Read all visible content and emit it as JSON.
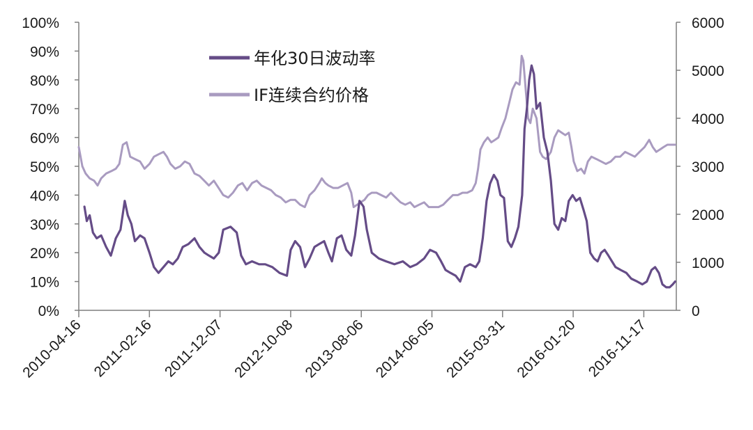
{
  "chart_data": {
    "type": "line",
    "title": "",
    "left_axis": {
      "min": 0,
      "max": 100,
      "ticks": [
        "0%",
        "10%",
        "20%",
        "30%",
        "40%",
        "50%",
        "60%",
        "70%",
        "80%",
        "90%",
        "100%"
      ]
    },
    "right_axis": {
      "min": 0,
      "max": 6000,
      "ticks": [
        "0",
        "1000",
        "2000",
        "3000",
        "4000",
        "5000",
        "6000"
      ]
    },
    "x_tick_labels": [
      "2010-04-16",
      "2011-02-16",
      "2011-12-07",
      "2012-10-08",
      "2013-08-06",
      "2014-06-05",
      "2015-03-31",
      "2016-01-20",
      "2016-11-17"
    ],
    "legend_position": "top-center",
    "grid": false,
    "series": [
      {
        "name": "年化30日波动率",
        "axis": "left",
        "unit": "%",
        "color": "#654c87",
        "points": [
          [
            "2010-05-10",
            36
          ],
          [
            "2010-05-20",
            31
          ],
          [
            "2010-06-01",
            33
          ],
          [
            "2010-06-15",
            27
          ],
          [
            "2010-07-01",
            25
          ],
          [
            "2010-07-20",
            26
          ],
          [
            "2010-08-10",
            22
          ],
          [
            "2010-08-30",
            19
          ],
          [
            "2010-09-20",
            25
          ],
          [
            "2010-10-10",
            28
          ],
          [
            "2010-10-28",
            38
          ],
          [
            "2010-11-10",
            33
          ],
          [
            "2010-11-25",
            30
          ],
          [
            "2010-12-10",
            24
          ],
          [
            "2011-01-01",
            26
          ],
          [
            "2011-01-20",
            25
          ],
          [
            "2011-02-10",
            20
          ],
          [
            "2011-03-01",
            15
          ],
          [
            "2011-03-20",
            13
          ],
          [
            "2011-04-10",
            15
          ],
          [
            "2011-05-01",
            17
          ],
          [
            "2011-05-20",
            16
          ],
          [
            "2011-06-10",
            18
          ],
          [
            "2011-07-01",
            22
          ],
          [
            "2011-07-25",
            23
          ],
          [
            "2011-08-20",
            25
          ],
          [
            "2011-09-10",
            22
          ],
          [
            "2011-10-01",
            20
          ],
          [
            "2011-10-20",
            19
          ],
          [
            "2011-11-10",
            18
          ],
          [
            "2011-12-01",
            20
          ],
          [
            "2011-12-20",
            28
          ],
          [
            "2012-01-20",
            29
          ],
          [
            "2012-02-15",
            27
          ],
          [
            "2012-03-05",
            19
          ],
          [
            "2012-03-25",
            16
          ],
          [
            "2012-04-20",
            17
          ],
          [
            "2012-05-20",
            16
          ],
          [
            "2012-06-15",
            16
          ],
          [
            "2012-07-15",
            15
          ],
          [
            "2012-08-15",
            13
          ],
          [
            "2012-09-15",
            12
          ],
          [
            "2012-10-01",
            21
          ],
          [
            "2012-10-20",
            24
          ],
          [
            "2012-11-10",
            22
          ],
          [
            "2012-12-01",
            15
          ],
          [
            "2012-12-20",
            18
          ],
          [
            "2013-01-10",
            22
          ],
          [
            "2013-01-30",
            23
          ],
          [
            "2013-02-20",
            24
          ],
          [
            "2013-03-10",
            20
          ],
          [
            "2013-03-25",
            17
          ],
          [
            "2013-04-15",
            25
          ],
          [
            "2013-05-05",
            26
          ],
          [
            "2013-05-25",
            21
          ],
          [
            "2013-06-15",
            19
          ],
          [
            "2013-07-01",
            26
          ],
          [
            "2013-07-20",
            38
          ],
          [
            "2013-08-06",
            36
          ],
          [
            "2013-08-20",
            28
          ],
          [
            "2013-09-10",
            20
          ],
          [
            "2013-10-10",
            18
          ],
          [
            "2013-11-10",
            17
          ],
          [
            "2013-12-15",
            16
          ],
          [
            "2014-01-20",
            17
          ],
          [
            "2014-02-20",
            15
          ],
          [
            "2014-03-20",
            16
          ],
          [
            "2014-04-20",
            18
          ],
          [
            "2014-05-15",
            21
          ],
          [
            "2014-06-10",
            20
          ],
          [
            "2014-07-01",
            17
          ],
          [
            "2014-07-20",
            14
          ],
          [
            "2014-08-10",
            13
          ],
          [
            "2014-09-01",
            12
          ],
          [
            "2014-09-20",
            10
          ],
          [
            "2014-10-10",
            15
          ],
          [
            "2014-11-01",
            16
          ],
          [
            "2014-11-25",
            15
          ],
          [
            "2014-12-10",
            17
          ],
          [
            "2014-12-25",
            25
          ],
          [
            "2015-01-10",
            38
          ],
          [
            "2015-01-25",
            44
          ],
          [
            "2015-02-10",
            47
          ],
          [
            "2015-02-25",
            45
          ],
          [
            "2015-03-10",
            40
          ],
          [
            "2015-03-25",
            39
          ],
          [
            "2015-04-10",
            24
          ],
          [
            "2015-04-25",
            22
          ],
          [
            "2015-05-10",
            25
          ],
          [
            "2015-05-25",
            29
          ],
          [
            "2015-06-10",
            40
          ],
          [
            "2015-06-20",
            63
          ],
          [
            "2015-06-30",
            70
          ],
          [
            "2015-07-10",
            80
          ],
          [
            "2015-07-20",
            85
          ],
          [
            "2015-07-30",
            82
          ],
          [
            "2015-08-10",
            70
          ],
          [
            "2015-08-25",
            72
          ],
          [
            "2015-09-10",
            60
          ],
          [
            "2015-09-25",
            55
          ],
          [
            "2015-10-10",
            45
          ],
          [
            "2015-10-25",
            30
          ],
          [
            "2015-11-10",
            28
          ],
          [
            "2015-11-25",
            32
          ],
          [
            "2015-12-10",
            31
          ],
          [
            "2015-12-25",
            38
          ],
          [
            "2016-01-10",
            40
          ],
          [
            "2016-01-25",
            38
          ],
          [
            "2016-02-10",
            39
          ],
          [
            "2016-02-25",
            35
          ],
          [
            "2016-03-10",
            31
          ],
          [
            "2016-03-25",
            20
          ],
          [
            "2016-04-10",
            18
          ],
          [
            "2016-04-25",
            17
          ],
          [
            "2016-05-10",
            20
          ],
          [
            "2016-05-25",
            21
          ],
          [
            "2016-06-10",
            19
          ],
          [
            "2016-06-25",
            17
          ],
          [
            "2016-07-10",
            15
          ],
          [
            "2016-08-01",
            14
          ],
          [
            "2016-08-25",
            13
          ],
          [
            "2016-09-15",
            11
          ],
          [
            "2016-10-10",
            10
          ],
          [
            "2016-11-01",
            9
          ],
          [
            "2016-11-20",
            10
          ],
          [
            "2016-12-10",
            14
          ],
          [
            "2016-12-25",
            15
          ],
          [
            "2017-01-10",
            13
          ],
          [
            "2017-01-25",
            9
          ],
          [
            "2017-02-10",
            8
          ],
          [
            "2017-02-25",
            8
          ],
          [
            "2017-03-10",
            9
          ],
          [
            "2017-03-20",
            10
          ]
        ]
      },
      {
        "name": "IF连续合约价格",
        "axis": "right",
        "unit": "",
        "color": "#a99bc0",
        "points": [
          [
            "2010-04-16",
            3400
          ],
          [
            "2010-05-01",
            3000
          ],
          [
            "2010-05-15",
            2850
          ],
          [
            "2010-06-01",
            2750
          ],
          [
            "2010-06-20",
            2700
          ],
          [
            "2010-07-05",
            2600
          ],
          [
            "2010-07-20",
            2750
          ],
          [
            "2010-08-10",
            2850
          ],
          [
            "2010-09-01",
            2900
          ],
          [
            "2010-09-20",
            2950
          ],
          [
            "2010-10-05",
            3050
          ],
          [
            "2010-10-20",
            3450
          ],
          [
            "2010-11-05",
            3500
          ],
          [
            "2010-11-20",
            3200
          ],
          [
            "2010-12-10",
            3150
          ],
          [
            "2011-01-01",
            3100
          ],
          [
            "2011-01-20",
            2950
          ],
          [
            "2011-02-10",
            3050
          ],
          [
            "2011-03-01",
            3200
          ],
          [
            "2011-03-20",
            3250
          ],
          [
            "2011-04-10",
            3300
          ],
          [
            "2011-04-25",
            3200
          ],
          [
            "2011-05-10",
            3050
          ],
          [
            "2011-05-30",
            2950
          ],
          [
            "2011-06-20",
            3000
          ],
          [
            "2011-07-10",
            3100
          ],
          [
            "2011-07-30",
            3050
          ],
          [
            "2011-08-20",
            2850
          ],
          [
            "2011-09-10",
            2800
          ],
          [
            "2011-09-30",
            2700
          ],
          [
            "2011-10-20",
            2600
          ],
          [
            "2011-11-10",
            2700
          ],
          [
            "2011-11-30",
            2550
          ],
          [
            "2011-12-20",
            2400
          ],
          [
            "2012-01-10",
            2350
          ],
          [
            "2012-01-30",
            2450
          ],
          [
            "2012-02-20",
            2600
          ],
          [
            "2012-03-10",
            2650
          ],
          [
            "2012-03-30",
            2500
          ],
          [
            "2012-04-20",
            2650
          ],
          [
            "2012-05-10",
            2700
          ],
          [
            "2012-05-30",
            2600
          ],
          [
            "2012-06-20",
            2550
          ],
          [
            "2012-07-10",
            2500
          ],
          [
            "2012-07-30",
            2400
          ],
          [
            "2012-08-20",
            2350
          ],
          [
            "2012-09-10",
            2250
          ],
          [
            "2012-09-30",
            2300
          ],
          [
            "2012-10-20",
            2300
          ],
          [
            "2012-11-10",
            2200
          ],
          [
            "2012-11-30",
            2150
          ],
          [
            "2012-12-20",
            2400
          ],
          [
            "2013-01-10",
            2500
          ],
          [
            "2013-01-30",
            2650
          ],
          [
            "2013-02-10",
            2750
          ],
          [
            "2013-02-25",
            2650
          ],
          [
            "2013-03-10",
            2600
          ],
          [
            "2013-03-30",
            2550
          ],
          [
            "2013-04-20",
            2550
          ],
          [
            "2013-05-10",
            2600
          ],
          [
            "2013-05-30",
            2650
          ],
          [
            "2013-06-15",
            2450
          ],
          [
            "2013-06-25",
            2150
          ],
          [
            "2013-07-10",
            2200
          ],
          [
            "2013-07-25",
            2250
          ],
          [
            "2013-08-10",
            2300
          ],
          [
            "2013-08-25",
            2400
          ],
          [
            "2013-09-10",
            2450
          ],
          [
            "2013-09-30",
            2450
          ],
          [
            "2013-10-20",
            2400
          ],
          [
            "2013-11-10",
            2350
          ],
          [
            "2013-11-30",
            2450
          ],
          [
            "2013-12-20",
            2350
          ],
          [
            "2014-01-10",
            2250
          ],
          [
            "2014-01-30",
            2200
          ],
          [
            "2014-02-20",
            2250
          ],
          [
            "2014-03-10",
            2150
          ],
          [
            "2014-03-30",
            2200
          ],
          [
            "2014-04-20",
            2250
          ],
          [
            "2014-05-10",
            2150
          ],
          [
            "2014-05-30",
            2150
          ],
          [
            "2014-06-20",
            2150
          ],
          [
            "2014-07-10",
            2200
          ],
          [
            "2014-07-30",
            2300
          ],
          [
            "2014-08-20",
            2400
          ],
          [
            "2014-09-10",
            2400
          ],
          [
            "2014-09-30",
            2450
          ],
          [
            "2014-10-20",
            2450
          ],
          [
            "2014-11-10",
            2500
          ],
          [
            "2014-11-25",
            2650
          ],
          [
            "2014-12-05",
            2950
          ],
          [
            "2014-12-15",
            3350
          ],
          [
            "2014-12-30",
            3500
          ],
          [
            "2015-01-15",
            3600
          ],
          [
            "2015-01-30",
            3500
          ],
          [
            "2015-02-15",
            3550
          ],
          [
            "2015-03-01",
            3600
          ],
          [
            "2015-03-15",
            3800
          ],
          [
            "2015-03-31",
            4000
          ],
          [
            "2015-04-15",
            4300
          ],
          [
            "2015-04-30",
            4600
          ],
          [
            "2015-05-15",
            4750
          ],
          [
            "2015-05-30",
            4700
          ],
          [
            "2015-06-08",
            5300
          ],
          [
            "2015-06-15",
            5200
          ],
          [
            "2015-06-25",
            4600
          ],
          [
            "2015-07-05",
            4000
          ],
          [
            "2015-07-15",
            3900
          ],
          [
            "2015-07-25",
            4200
          ],
          [
            "2015-08-10",
            4000
          ],
          [
            "2015-08-25",
            3300
          ],
          [
            "2015-09-05",
            3200
          ],
          [
            "2015-09-20",
            3150
          ],
          [
            "2015-10-10",
            3300
          ],
          [
            "2015-10-25",
            3600
          ],
          [
            "2015-11-10",
            3750
          ],
          [
            "2015-11-25",
            3700
          ],
          [
            "2015-12-10",
            3650
          ],
          [
            "2015-12-25",
            3700
          ],
          [
            "2016-01-05",
            3400
          ],
          [
            "2016-01-15",
            3100
          ],
          [
            "2016-01-30",
            2900
          ],
          [
            "2016-02-15",
            2950
          ],
          [
            "2016-02-29",
            2850
          ],
          [
            "2016-03-15",
            3100
          ],
          [
            "2016-03-30",
            3200
          ],
          [
            "2016-04-20",
            3150
          ],
          [
            "2016-05-10",
            3100
          ],
          [
            "2016-05-30",
            3050
          ],
          [
            "2016-06-20",
            3100
          ],
          [
            "2016-07-10",
            3200
          ],
          [
            "2016-07-30",
            3200
          ],
          [
            "2016-08-20",
            3300
          ],
          [
            "2016-09-10",
            3250
          ],
          [
            "2016-09-30",
            3200
          ],
          [
            "2016-10-20",
            3300
          ],
          [
            "2016-11-10",
            3400
          ],
          [
            "2016-11-30",
            3550
          ],
          [
            "2016-12-15",
            3400
          ],
          [
            "2016-12-30",
            3300
          ],
          [
            "2017-01-15",
            3350
          ],
          [
            "2017-01-30",
            3400
          ],
          [
            "2017-02-15",
            3450
          ],
          [
            "2017-03-01",
            3450
          ],
          [
            "2017-03-20",
            3450
          ]
        ]
      }
    ]
  },
  "colors": {
    "axis": "#7f7f7f",
    "text": "#1a1a1a"
  }
}
